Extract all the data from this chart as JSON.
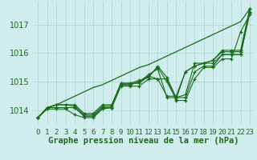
{
  "background_color": "#d0ecec",
  "grid_color": "#aad4d4",
  "line_color": "#1a6b1a",
  "title": "Graphe pression niveau de la mer (hPa)",
  "title_fontsize": 7.5,
  "ylabel_fontsize": 7,
  "xlabel_fontsize": 6.5,
  "ylim": [
    1013.5,
    1017.8
  ],
  "yticks": [
    1014,
    1015,
    1016,
    1017
  ],
  "series": [
    [
      1013.75,
      1014.05,
      1014.05,
      1014.05,
      1013.85,
      1013.75,
      1013.75,
      1014.05,
      1014.1,
      1014.85,
      1014.85,
      1014.85,
      1015.1,
      1015.1,
      1015.1,
      1014.35,
      1014.35,
      1015.1,
      1015.5,
      1015.5,
      1015.8,
      1015.8,
      1016.75,
      1017.35
    ],
    [
      1013.75,
      1014.1,
      1014.1,
      1014.1,
      1014.1,
      1013.8,
      1013.8,
      1014.1,
      1014.1,
      1014.9,
      1014.9,
      1015.0,
      1015.25,
      1015.45,
      1014.45,
      1014.45,
      1014.45,
      1015.35,
      1015.55,
      1015.55,
      1015.95,
      1015.95,
      1015.95,
      1017.45
    ],
    [
      1013.75,
      1014.1,
      1014.1,
      1014.1,
      1014.1,
      1013.8,
      1013.8,
      1014.1,
      1014.1,
      1014.95,
      1014.95,
      1014.95,
      1015.2,
      1015.1,
      1014.5,
      1014.5,
      1015.35,
      1015.55,
      1015.65,
      1015.65,
      1015.95,
      1015.95,
      1015.95,
      1017.4
    ],
    [
      1013.75,
      1014.1,
      1014.2,
      1014.2,
      1014.2,
      1013.9,
      1013.9,
      1014.2,
      1014.2,
      1014.95,
      1014.95,
      1015.05,
      1015.15,
      1015.55,
      1015.15,
      1014.45,
      1014.55,
      1015.65,
      1015.65,
      1015.75,
      1016.05,
      1016.05,
      1016.05,
      1017.55
    ],
    [
      1013.75,
      1014.1,
      1014.2,
      1014.2,
      1014.15,
      1013.85,
      1013.85,
      1014.15,
      1014.15,
      1014.9,
      1014.9,
      1015.0,
      1015.2,
      1015.5,
      1015.0,
      1014.4,
      1015.35,
      1015.55,
      1015.65,
      1015.75,
      1016.1,
      1016.1,
      1016.1,
      1017.55
    ]
  ],
  "trend_series": [
    1013.75,
    1014.1,
    1014.2,
    1014.35,
    1014.5,
    1014.65,
    1014.8,
    1014.9,
    1015.05,
    1015.2,
    1015.35,
    1015.5,
    1015.6,
    1015.75,
    1015.9,
    1016.05,
    1016.2,
    1016.35,
    1016.5,
    1016.65,
    1016.8,
    1016.95,
    1017.1,
    1017.55
  ]
}
